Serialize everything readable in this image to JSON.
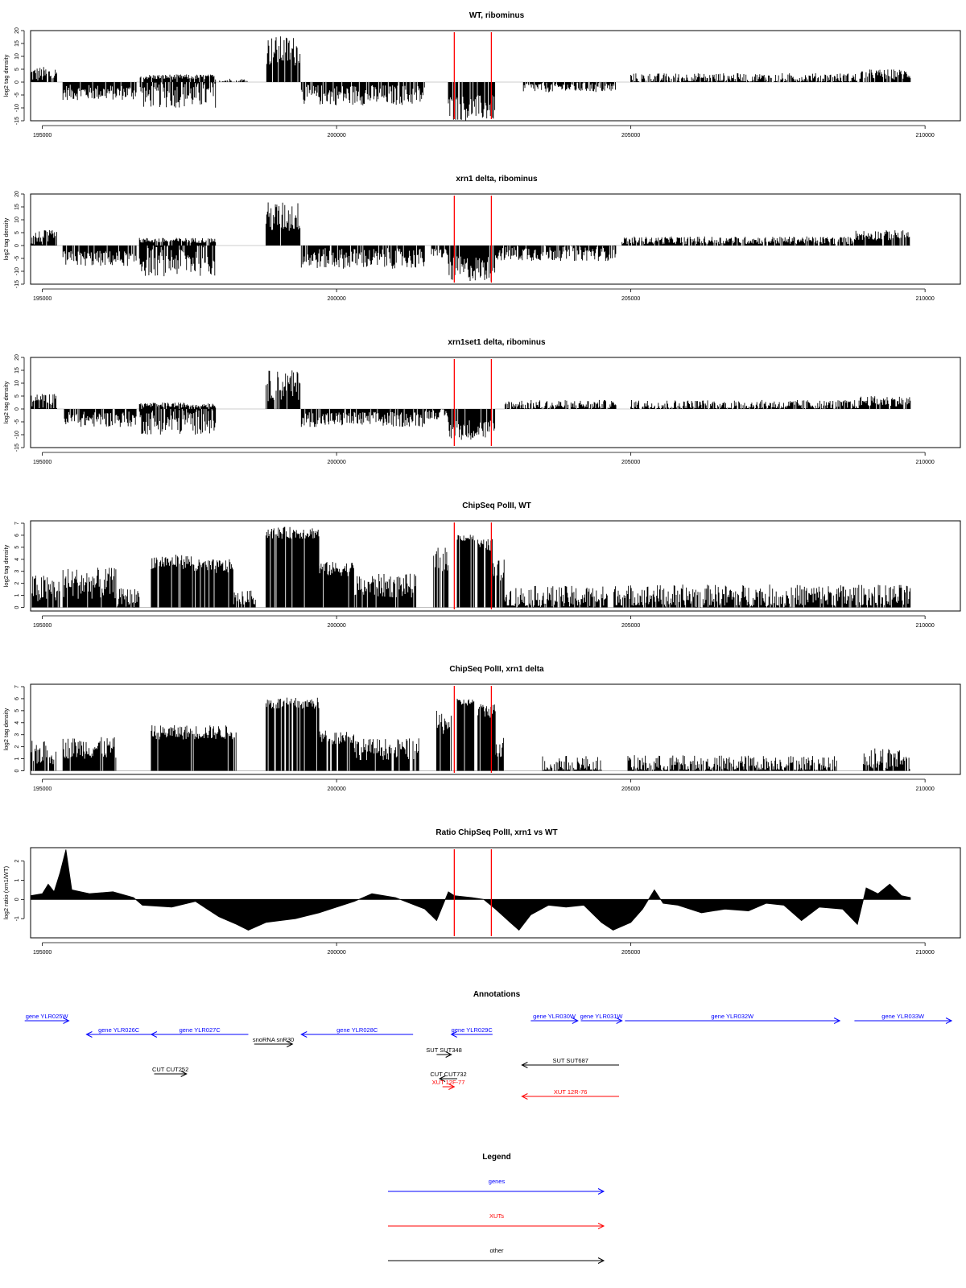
{
  "figure": {
    "xaxis_ticks": [
      195000,
      200000,
      205000,
      210000
    ],
    "xlim": [
      194800,
      210600
    ],
    "marker_lines": {
      "color": "#ff0000",
      "positions": [
        202000,
        202630
      ]
    }
  },
  "chart_data": [
    {
      "type": "bar",
      "title": "WT, ribominus",
      "ylabel": "log2 tag density",
      "ylim": [
        -15,
        20
      ],
      "yticks": [
        -15,
        -10,
        -5,
        0,
        5,
        10,
        15,
        20
      ],
      "ytick_labels": [
        "-15",
        "-10",
        "-5",
        "0",
        "5",
        "10",
        "15",
        "20"
      ],
      "segments": [
        {
          "x": [
            194800,
            195250
          ],
          "level": 3,
          "noise": 3
        },
        {
          "x": [
            195350,
            196600
          ],
          "level": -4,
          "noise": 3
        },
        {
          "x": [
            196650,
            197950
          ],
          "level": -5,
          "noise": 5
        },
        {
          "x": [
            196650,
            197950
          ],
          "level": 2,
          "noise": 1
        },
        {
          "x": [
            198000,
            198500
          ],
          "level": 0.5,
          "noise": 1
        },
        {
          "x": [
            198800,
            199380
          ],
          "level": 12,
          "noise": 6
        },
        {
          "x": [
            199400,
            201500
          ],
          "level": -5,
          "noise": 4
        },
        {
          "x": [
            201900,
            202700
          ],
          "level": -10,
          "noise": 5
        },
        {
          "x": [
            203150,
            204750
          ],
          "level": -2,
          "noise": 2
        },
        {
          "x": [
            205000,
            208900
          ],
          "level": 1.5,
          "noise": 2
        },
        {
          "x": [
            208900,
            209750
          ],
          "level": 3,
          "noise": 2
        }
      ]
    },
    {
      "type": "bar",
      "title": "xrn1 delta, ribominus",
      "ylabel": "log2 tag density",
      "ylim": [
        -15,
        20
      ],
      "yticks": [
        -15,
        -10,
        -5,
        0,
        5,
        10,
        15,
        20
      ],
      "ytick_labels": [
        "-15",
        "-10",
        "-5",
        "0",
        "5",
        "10",
        "15",
        "20"
      ],
      "segments": [
        {
          "x": [
            194800,
            195250
          ],
          "level": 3,
          "noise": 3
        },
        {
          "x": [
            195350,
            196600
          ],
          "level": -5,
          "noise": 3
        },
        {
          "x": [
            196650,
            197950
          ],
          "level": -6,
          "noise": 6
        },
        {
          "x": [
            196650,
            197950
          ],
          "level": 2,
          "noise": 1
        },
        {
          "x": [
            198800,
            199380
          ],
          "level": 11,
          "noise": 6
        },
        {
          "x": [
            199400,
            201500
          ],
          "level": -5,
          "noise": 4
        },
        {
          "x": [
            201600,
            201900
          ],
          "level": -3,
          "noise": 2
        },
        {
          "x": [
            201900,
            202700
          ],
          "level": -9,
          "noise": 5
        },
        {
          "x": [
            202700,
            204750
          ],
          "level": -3,
          "noise": 3
        },
        {
          "x": [
            204850,
            208800
          ],
          "level": 2,
          "noise": 1.5
        },
        {
          "x": [
            208800,
            209750
          ],
          "level": 4,
          "noise": 2
        }
      ]
    },
    {
      "type": "bar",
      "title": "xrn1set1 delta, ribominus",
      "ylabel": "log2 tag density",
      "ylim": [
        -15,
        20
      ],
      "yticks": [
        -15,
        -10,
        -5,
        0,
        5,
        10,
        15,
        20
      ],
      "ytick_labels": [
        "-15",
        "-10",
        "-5",
        "0",
        "5",
        "10",
        "15",
        "20"
      ],
      "segments": [
        {
          "x": [
            194800,
            195250
          ],
          "level": 3,
          "noise": 3
        },
        {
          "x": [
            195350,
            196600
          ],
          "level": -4,
          "noise": 3
        },
        {
          "x": [
            196650,
            197950
          ],
          "level": -5,
          "noise": 5
        },
        {
          "x": [
            196650,
            197950
          ],
          "level": 1.5,
          "noise": 1
        },
        {
          "x": [
            198800,
            199380
          ],
          "level": 9,
          "noise": 6
        },
        {
          "x": [
            199400,
            201500
          ],
          "level": -4,
          "noise": 3
        },
        {
          "x": [
            201500,
            201900
          ],
          "level": -2,
          "noise": 2
        },
        {
          "x": [
            201900,
            202700
          ],
          "level": -8,
          "noise": 4
        },
        {
          "x": [
            202850,
            204750
          ],
          "level": 1.5,
          "noise": 2
        },
        {
          "x": [
            205000,
            208900
          ],
          "level": 1.5,
          "noise": 2
        },
        {
          "x": [
            208900,
            209750
          ],
          "level": 3,
          "noise": 2
        }
      ]
    },
    {
      "type": "bar",
      "title": "ChipSeq PolII, WT",
      "ylabel": "log2 tag density",
      "ylim": [
        -0.3,
        7.2
      ],
      "yticks": [
        0,
        1,
        2,
        3,
        4,
        5,
        6,
        7
      ],
      "ytick_labels": [
        "0",
        "1",
        "2",
        "3",
        "4",
        "5",
        "6",
        "7"
      ],
      "segments": [
        {
          "x": [
            194800,
            195300
          ],
          "level": 1.5,
          "noise": 1.2
        },
        {
          "x": [
            195350,
            196250
          ],
          "level": 2,
          "noise": 1.3
        },
        {
          "x": [
            196250,
            196650
          ],
          "level": 0.8,
          "noise": 0.8
        },
        {
          "x": [
            196850,
            197550
          ],
          "level": 3.8,
          "noise": 0.6
        },
        {
          "x": [
            197550,
            198250
          ],
          "level": 3.4,
          "noise": 0.6
        },
        {
          "x": [
            198250,
            198650
          ],
          "level": 0.8,
          "noise": 0.6
        },
        {
          "x": [
            198800,
            199700
          ],
          "level": 6.2,
          "noise": 0.5
        },
        {
          "x": [
            199700,
            200300
          ],
          "level": 3.2,
          "noise": 0.6
        },
        {
          "x": [
            200300,
            201350
          ],
          "level": 1.8,
          "noise": 1
        },
        {
          "x": [
            201650,
            201900
          ],
          "level": 4,
          "noise": 1
        },
        {
          "x": [
            202050,
            202350
          ],
          "level": 5.8,
          "noise": 0.3
        },
        {
          "x": [
            202400,
            202650
          ],
          "level": 5.2,
          "noise": 0.5
        },
        {
          "x": [
            202650,
            202850
          ],
          "level": 3,
          "noise": 1
        },
        {
          "x": [
            202850,
            204600
          ],
          "level": 0.8,
          "noise": 1
        },
        {
          "x": [
            204700,
            209750
          ],
          "level": 0.9,
          "noise": 1
        }
      ]
    },
    {
      "type": "bar",
      "title": "ChipSeq PolII, xrn1 delta",
      "ylabel": "log2 tag density",
      "ylim": [
        -0.3,
        7.2
      ],
      "yticks": [
        0,
        1,
        2,
        3,
        4,
        5,
        6,
        7
      ],
      "ytick_labels": [
        "0",
        "1",
        "2",
        "3",
        "4",
        "5",
        "6",
        "7"
      ],
      "segments": [
        {
          "x": [
            194800,
            195250
          ],
          "level": 1.5,
          "noise": 1
        },
        {
          "x": [
            195350,
            196250
          ],
          "level": 1.9,
          "noise": 0.9
        },
        {
          "x": [
            196850,
            198300
          ],
          "level": 3.2,
          "noise": 0.6
        },
        {
          "x": [
            198800,
            199700
          ],
          "level": 5.6,
          "noise": 0.5
        },
        {
          "x": [
            199700,
            200300
          ],
          "level": 2.8,
          "noise": 0.6
        },
        {
          "x": [
            200300,
            201400
          ],
          "level": 1.8,
          "noise": 0.9
        },
        {
          "x": [
            201700,
            201950
          ],
          "level": 4,
          "noise": 1
        },
        {
          "x": [
            202050,
            202350
          ],
          "level": 5.7,
          "noise": 0.3
        },
        {
          "x": [
            202400,
            202700
          ],
          "level": 5,
          "noise": 0.6
        },
        {
          "x": [
            202700,
            202850
          ],
          "level": 2,
          "noise": 1
        },
        {
          "x": [
            203500,
            204500
          ],
          "level": 0.5,
          "noise": 0.8
        },
        {
          "x": [
            204950,
            208500
          ],
          "level": 0.5,
          "noise": 0.8
        },
        {
          "x": [
            208950,
            209750
          ],
          "level": 1,
          "noise": 1
        }
      ]
    },
    {
      "type": "area",
      "title": "Ratio ChipSeq PolII, xrn1 vs WT",
      "ylabel": "log2 ratio (xrn1/WT)",
      "ylim": [
        -2,
        2.7
      ],
      "yticks": [
        -1,
        0,
        1,
        2
      ],
      "ytick_labels": [
        "-1",
        "0",
        "1",
        "2"
      ],
      "points": [
        [
          194800,
          0.2
        ],
        [
          195000,
          0.3
        ],
        [
          195100,
          0.8
        ],
        [
          195200,
          0.4
        ],
        [
          195300,
          1.4
        ],
        [
          195400,
          2.6
        ],
        [
          195500,
          0.5
        ],
        [
          195800,
          0.3
        ],
        [
          196200,
          0.4
        ],
        [
          196550,
          0.1
        ],
        [
          196700,
          -0.3
        ],
        [
          197200,
          -0.4
        ],
        [
          197600,
          -0.1
        ],
        [
          198000,
          -0.9
        ],
        [
          198300,
          -1.3
        ],
        [
          198500,
          -1.6
        ],
        [
          198800,
          -1.2
        ],
        [
          199300,
          -1.0
        ],
        [
          199700,
          -0.7
        ],
        [
          200000,
          -0.4
        ],
        [
          200300,
          -0.1
        ],
        [
          200600,
          0.3
        ],
        [
          201000,
          0.1
        ],
        [
          201500,
          -0.5
        ],
        [
          201700,
          -1.1
        ],
        [
          201900,
          0.4
        ],
        [
          202000,
          0.2
        ],
        [
          202300,
          0.1
        ],
        [
          202500,
          0.0
        ],
        [
          202700,
          -0.5
        ],
        [
          202950,
          -1.2
        ],
        [
          203100,
          -1.6
        ],
        [
          203300,
          -0.8
        ],
        [
          203600,
          -0.3
        ],
        [
          203900,
          -0.4
        ],
        [
          204200,
          -0.3
        ],
        [
          204500,
          -1.2
        ],
        [
          204700,
          -1.6
        ],
        [
          205000,
          -1.2
        ],
        [
          205200,
          -0.5
        ],
        [
          205400,
          0.5
        ],
        [
          205550,
          -0.2
        ],
        [
          205800,
          -0.3
        ],
        [
          206200,
          -0.7
        ],
        [
          206600,
          -0.5
        ],
        [
          207000,
          -0.6
        ],
        [
          207300,
          -0.2
        ],
        [
          207600,
          -0.3
        ],
        [
          207900,
          -1.1
        ],
        [
          208200,
          -0.4
        ],
        [
          208600,
          -0.5
        ],
        [
          208850,
          -1.3
        ],
        [
          209000,
          0.6
        ],
        [
          209200,
          0.3
        ],
        [
          209400,
          0.8
        ],
        [
          209600,
          0.2
        ],
        [
          209750,
          0.1
        ]
      ]
    }
  ],
  "annotations": {
    "title": "Annotations",
    "colors": {
      "gene": "#0000ff",
      "xut": "#ff0000",
      "other": "#000000"
    },
    "items": [
      {
        "label": "gene YLR025W",
        "start": 194700,
        "end": 195450,
        "row": 0,
        "kind": "gene",
        "dir": "right"
      },
      {
        "label": "gene YLR026C",
        "start": 195750,
        "end": 196850,
        "row": 1,
        "kind": "gene",
        "dir": "left"
      },
      {
        "label": "gene YLR027C",
        "start": 196850,
        "end": 198500,
        "row": 1,
        "kind": "gene",
        "dir": "left"
      },
      {
        "label": "snoRNA snR30",
        "start": 198600,
        "end": 199250,
        "row": 2,
        "kind": "other",
        "dir": "right"
      },
      {
        "label": "gene YLR028C",
        "start": 199400,
        "end": 201300,
        "row": 1,
        "kind": "gene",
        "dir": "left"
      },
      {
        "label": "gene YLR029C",
        "start": 201950,
        "end": 202650,
        "row": 1,
        "kind": "gene",
        "dir": "left"
      },
      {
        "label": "gene YLR030W",
        "start": 203300,
        "end": 204100,
        "row": 0,
        "kind": "gene",
        "dir": "right"
      },
      {
        "label": "gene YLR031W",
        "start": 204150,
        "end": 204850,
        "row": 0,
        "kind": "gene",
        "dir": "right"
      },
      {
        "label": "gene YLR032W",
        "start": 204900,
        "end": 208550,
        "row": 0,
        "kind": "gene",
        "dir": "right"
      },
      {
        "label": "gene YLR033W",
        "start": 208800,
        "end": 210450,
        "row": 0,
        "kind": "gene",
        "dir": "right"
      },
      {
        "label": "SUT SUT348",
        "start": 201700,
        "end": 201950,
        "row": 3,
        "kind": "other",
        "dir": "right"
      },
      {
        "label": "SUT SUT687",
        "start": 203150,
        "end": 204800,
        "row": 4,
        "kind": "other",
        "dir": "left"
      },
      {
        "label": "CUT CUT252",
        "start": 196900,
        "end": 197450,
        "row": 5,
        "kind": "other",
        "dir": "right"
      },
      {
        "label": "CUT CUT732",
        "start": 201750,
        "end": 202050,
        "row": 6,
        "kind": "other",
        "dir": "left"
      },
      {
        "label": "XUT 12F-77",
        "start": 201800,
        "end": 202000,
        "row": 7,
        "kind": "xut",
        "dir": "right"
      },
      {
        "label": "XUT 12R-76",
        "start": 203150,
        "end": 204800,
        "row": 8,
        "kind": "xut",
        "dir": "left"
      }
    ]
  },
  "legend": {
    "title": "Legend",
    "entries": [
      {
        "label": "genes",
        "color": "#0000ff"
      },
      {
        "label": "XUTs",
        "color": "#ff0000"
      },
      {
        "label": "other",
        "color": "#000000"
      }
    ]
  }
}
